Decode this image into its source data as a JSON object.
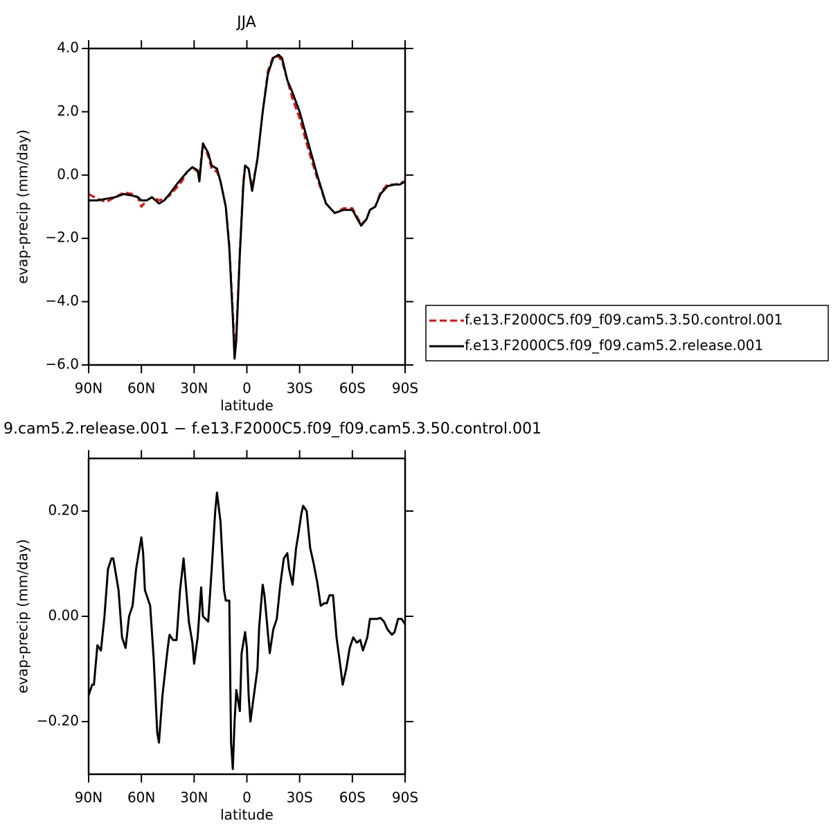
{
  "chart_data": [
    {
      "type": "line",
      "title": "JJA",
      "xlabel": "latitude",
      "ylabel": "evap-precip (mm/day)",
      "x": [
        90,
        85,
        80,
        75,
        70,
        65,
        62,
        60,
        57,
        54,
        50,
        47,
        44,
        40,
        37,
        34,
        31,
        28,
        27,
        25,
        22,
        20,
        17,
        15,
        12,
        10,
        8,
        7,
        6,
        4,
        2,
        1,
        -1,
        -3,
        -6,
        -9,
        -12,
        -15,
        -18,
        -20,
        -23,
        -26,
        -30,
        -35,
        -40,
        -45,
        -50,
        -55,
        -60,
        -65,
        -68,
        -70,
        -73,
        -76,
        -80,
        -84,
        -87,
        -90
      ],
      "series": [
        {
          "name": "f.e13.F2000C5.f09_f09.cam5.3.50.control.001",
          "color": "#ff0000",
          "linestyle": "dashed",
          "values": [
            -0.6,
            -0.75,
            -0.85,
            -0.7,
            -0.55,
            -0.6,
            -0.7,
            -1.0,
            -0.8,
            -0.7,
            -0.8,
            -0.75,
            -0.65,
            -0.4,
            -0.2,
            0.1,
            0.25,
            0.1,
            0.0,
            1.0,
            0.6,
            0.2,
            0.1,
            -0.2,
            -1.0,
            -2.2,
            -4.3,
            -5.4,
            -5.0,
            -2.4,
            -0.2,
            0.3,
            0.2,
            -0.4,
            0.5,
            2.0,
            3.3,
            3.75,
            3.75,
            3.6,
            3.0,
            2.4,
            1.8,
            0.8,
            -0.1,
            -0.9,
            -1.2,
            -1.05,
            -1.05,
            -1.55,
            -1.4,
            -1.1,
            -1.0,
            -0.55,
            -0.3,
            -0.3,
            -0.25,
            -0.2
          ]
        },
        {
          "name": "f.e13.F2000C5.f09_f09.cam5.2.release.001",
          "color": "#000000",
          "linestyle": "solid",
          "values": [
            -0.8,
            -0.8,
            -0.75,
            -0.7,
            -0.6,
            -0.65,
            -0.7,
            -0.8,
            -0.8,
            -0.7,
            -0.9,
            -0.8,
            -0.6,
            -0.3,
            -0.1,
            0.1,
            0.25,
            0.15,
            -0.2,
            1.0,
            0.7,
            0.3,
            0.2,
            -0.2,
            -1.0,
            -2.3,
            -4.5,
            -5.8,
            -5.2,
            -2.5,
            -0.3,
            0.3,
            0.2,
            -0.5,
            0.5,
            2.0,
            3.2,
            3.7,
            3.8,
            3.7,
            3.0,
            2.6,
            2.0,
            1.0,
            0.0,
            -0.9,
            -1.2,
            -1.1,
            -1.1,
            -1.6,
            -1.4,
            -1.1,
            -1.0,
            -0.6,
            -0.35,
            -0.3,
            -0.3,
            -0.2
          ]
        }
      ],
      "xlim": [
        90,
        -90
      ],
      "xticks": [
        {
          "value": 90,
          "label": "90N"
        },
        {
          "value": 60,
          "label": "60N"
        },
        {
          "value": 30,
          "label": "30N"
        },
        0,
        {
          "value": -30,
          "label": "30S"
        },
        {
          "value": -60,
          "label": "60S"
        },
        {
          "value": -90,
          "label": "90S"
        }
      ],
      "ylim": [
        -6,
        4
      ],
      "yticks": [
        {
          "value": 4,
          "label": "4.0"
        },
        {
          "value": 2,
          "label": "2.0"
        },
        {
          "value": 0,
          "label": "0.0"
        },
        {
          "value": -2,
          "label": "−2.0"
        },
        {
          "value": -4,
          "label": "−4.0"
        },
        {
          "value": -6,
          "label": "−6.0"
        }
      ],
      "legend": "right",
      "grid": false
    },
    {
      "type": "line",
      "title": "9.cam5.2.release.001  −  f.e13.F2000C5.f09_f09.cam5.3.50.control.001",
      "xlabel": "latitude",
      "ylabel": "evap-precip (mm/day)",
      "x": [
        90,
        88,
        87,
        85,
        83,
        81,
        79,
        77,
        76,
        75,
        73,
        71,
        69,
        67,
        65,
        63,
        60,
        59,
        58,
        56,
        55,
        53,
        51,
        50,
        48,
        45,
        44,
        42,
        40,
        38,
        36,
        35,
        33,
        31,
        30,
        28,
        26,
        25,
        22,
        20,
        18,
        17,
        15,
        13,
        12,
        10,
        9,
        8,
        7,
        6,
        4,
        3,
        1,
        0,
        -1,
        -2,
        -4,
        -6,
        -7,
        -9,
        -10,
        -13,
        -15,
        -17,
        -19,
        -21,
        -23,
        -24,
        -26,
        -28,
        -29,
        -31,
        -32,
        -34,
        -36,
        -38,
        -40,
        -42,
        -44,
        -45.5,
        -47,
        -49,
        -51,
        -53,
        -54.5,
        -56.5,
        -58.5,
        -60.5,
        -62.5,
        -64.5,
        -66,
        -68.5,
        -70,
        -72,
        -74,
        -76,
        -78,
        -80,
        -82.5,
        -84,
        -86,
        -88,
        -90
      ],
      "color": "#000000",
      "values": [
        -0.15,
        -0.13,
        -0.13,
        -0.055,
        -0.065,
        0.0,
        0.09,
        0.11,
        0.11,
        0.09,
        0.05,
        -0.04,
        -0.06,
        0.0,
        0.02,
        0.09,
        0.15,
        0.12,
        0.05,
        0.03,
        0.02,
        -0.08,
        -0.22,
        -0.24,
        -0.15,
        -0.06,
        -0.035,
        -0.045,
        -0.045,
        0.05,
        0.11,
        0.07,
        -0.01,
        -0.05,
        -0.09,
        -0.04,
        0.055,
        0.0,
        -0.01,
        0.09,
        0.2,
        0.235,
        0.18,
        0.05,
        0.03,
        0.03,
        -0.24,
        -0.29,
        -0.2,
        -0.14,
        -0.18,
        -0.07,
        -0.03,
        -0.06,
        -0.15,
        -0.2,
        -0.15,
        -0.1,
        -0.02,
        0.06,
        0.04,
        -0.07,
        -0.025,
        -0.005,
        0.06,
        0.11,
        0.12,
        0.09,
        0.06,
        0.13,
        0.15,
        0.195,
        0.21,
        0.2,
        0.13,
        0.1,
        0.065,
        0.02,
        0.025,
        0.025,
        0.04,
        0.04,
        -0.04,
        -0.09,
        -0.13,
        -0.1,
        -0.06,
        -0.04,
        -0.05,
        -0.045,
        -0.065,
        -0.04,
        -0.005,
        -0.005,
        -0.005,
        -0.003,
        -0.01,
        -0.025,
        -0.035,
        -0.03,
        -0.005,
        -0.005,
        -0.015
      ],
      "xlim": [
        90,
        -90
      ],
      "xticks": [
        {
          "value": 90,
          "label": "90N"
        },
        {
          "value": 60,
          "label": "60N"
        },
        {
          "value": 30,
          "label": "30N"
        },
        0,
        {
          "value": -30,
          "label": "30S"
        },
        {
          "value": -60,
          "label": "60S"
        },
        {
          "value": -90,
          "label": "90S"
        }
      ],
      "ylim": [
        -0.3,
        0.3
      ],
      "yticks": [
        {
          "value": 0.2,
          "label": "0.20"
        },
        {
          "value": 0,
          "label": "0.00"
        },
        {
          "value": -0.2,
          "label": "−0.20"
        }
      ],
      "grid": false
    }
  ]
}
